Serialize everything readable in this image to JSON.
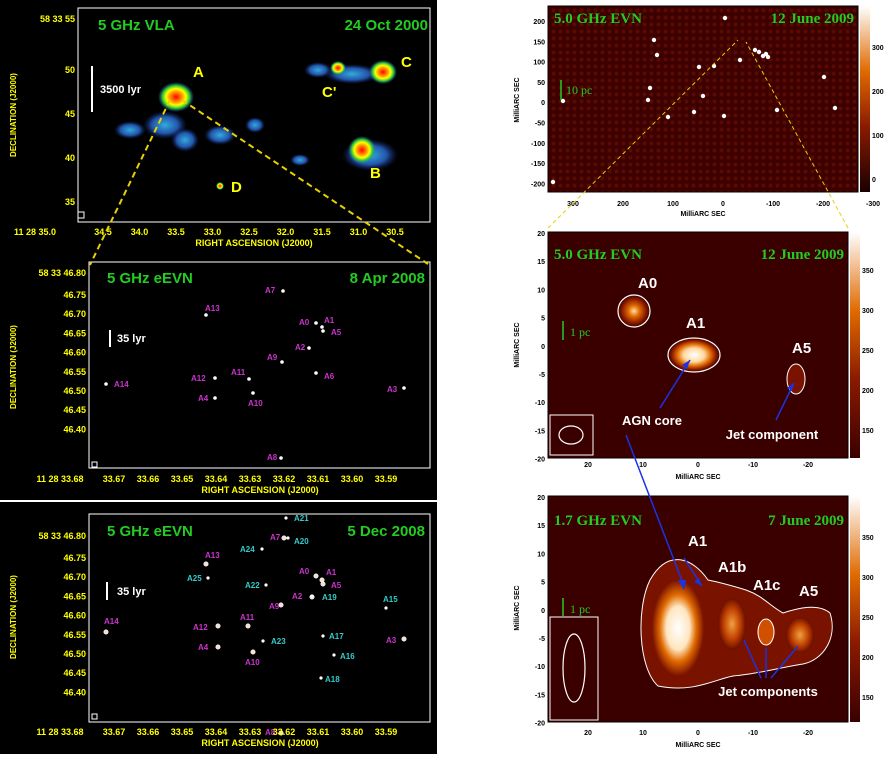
{
  "colors": {
    "panel_bg": "#000000",
    "frame": "#ffffff",
    "axis_text": "#ffff00",
    "title": "#22cc22",
    "magenta": "#cc33cc",
    "cyan": "#33cccc",
    "arrow": "#1a33e6",
    "dashed": "#e6d100",
    "evn_bg": "#3a0000"
  },
  "vla": {
    "title": "5 GHz VLA",
    "date": "24 Oct 2000",
    "scale": "3500 lyr",
    "ylabel": "DECLINATION (J2000)",
    "xlabel": "RIGHT ASCENSION (J2000)",
    "dec_first": "58 33 55",
    "ra_first": "11 28 35.0",
    "yticks": [
      "50",
      "45",
      "40",
      "35"
    ],
    "xticks": [
      "34.5",
      "34.0",
      "33.5",
      "33.0",
      "32.5",
      "32.0",
      "31.5",
      "31.0",
      "30.5"
    ],
    "labels": [
      "A",
      "B",
      "C",
      "C'",
      "D"
    ]
  },
  "evn1": {
    "title": "5 GHz eEVN",
    "date": "8 Apr 2008",
    "scale": "35 lyr",
    "ylabel": "DECLINATION (J2000)",
    "xlabel": "RIGHT ASCENSION (J2000)",
    "dec_first": "58 33 46.80",
    "ra_first": "11 28 33.68",
    "yticks": [
      "46.75",
      "46.70",
      "46.65",
      "46.60",
      "46.55",
      "46.50",
      "46.45",
      "46.40"
    ],
    "xticks": [
      "33.67",
      "33.66",
      "33.65",
      "33.64",
      "33.63",
      "33.62",
      "33.61",
      "33.60",
      "33.59"
    ],
    "sources": [
      "A7",
      "A13",
      "A0",
      "A1",
      "A5",
      "A2",
      "A9",
      "A6",
      "A11",
      "A12",
      "A14",
      "A4",
      "A10",
      "A3",
      "A8"
    ]
  },
  "evn2": {
    "title": "5 GHz eEVN",
    "date": "5 Dec 2008",
    "scale": "35 lyr",
    "ylabel": "DECLINATION (J2000)",
    "xlabel": "RIGHT ASCENSION (J2000)",
    "dec_first": "58 33 46.80",
    "ra_first": "11 28 33.68",
    "yticks": [
      "46.75",
      "46.70",
      "46.65",
      "46.60",
      "46.55",
      "46.50",
      "46.45",
      "46.40"
    ],
    "xticks": [
      "33.67",
      "33.66",
      "33.65",
      "33.64",
      "33.63",
      "33.62",
      "33.61",
      "33.60",
      "33.59"
    ],
    "magenta_sources": [
      "A7",
      "A13",
      "A0",
      "A1",
      "A5",
      "A2",
      "A9",
      "A11",
      "A12",
      "A14",
      "A4",
      "A10",
      "A3",
      "A8"
    ],
    "cyan_sources": [
      "A21",
      "A20",
      "A24",
      "A25",
      "A22",
      "A19",
      "A15",
      "A23",
      "A17",
      "A16",
      "A18"
    ]
  },
  "top_right": {
    "title": "5.0 GHz EVN",
    "date": "12 June 2009",
    "scale": "10 pc",
    "ylabel": "MilliARC SEC",
    "xlabel": "MilliARC SEC",
    "yticks": [
      "200",
      "150",
      "100",
      "50",
      "0",
      "-50",
      "-100",
      "-150",
      "-200"
    ],
    "xticks": [
      "300",
      "200",
      "100",
      "0",
      "-100",
      "-200",
      "-300"
    ],
    "cbar": [
      "300",
      "200",
      "100",
      "0"
    ]
  },
  "mid_right": {
    "title": "5.0 GHz EVN",
    "date": "12 June 2009",
    "scale": "1 pc",
    "ylabel": "MilliARC SEC",
    "xlabel": "MilliARC SEC",
    "yticks": [
      "20",
      "15",
      "10",
      "5",
      "0",
      "-5",
      "-10",
      "-15",
      "-20"
    ],
    "xticks": [
      "20",
      "10",
      "0",
      "-10",
      "-20"
    ],
    "cbar": [
      "350",
      "300",
      "250",
      "200",
      "150"
    ],
    "labels": [
      "A0",
      "A1",
      "A5"
    ],
    "annot1": "AGN core",
    "annot2": "Jet component"
  },
  "bot_right": {
    "title": "1.7 GHz EVN",
    "date": "7 June 2009",
    "scale": "1 pc",
    "ylabel": "MilliARC SEC",
    "xlabel": "MilliARC SEC",
    "yticks": [
      "20",
      "15",
      "10",
      "5",
      "0",
      "-5",
      "-10",
      "-15",
      "-20"
    ],
    "xticks": [
      "20",
      "10",
      "0",
      "-10",
      "-20"
    ],
    "cbar": [
      "350",
      "300",
      "250",
      "200",
      "150"
    ],
    "labels": [
      "A1",
      "A1b",
      "A1c",
      "A5"
    ],
    "annot": "Jet components"
  }
}
